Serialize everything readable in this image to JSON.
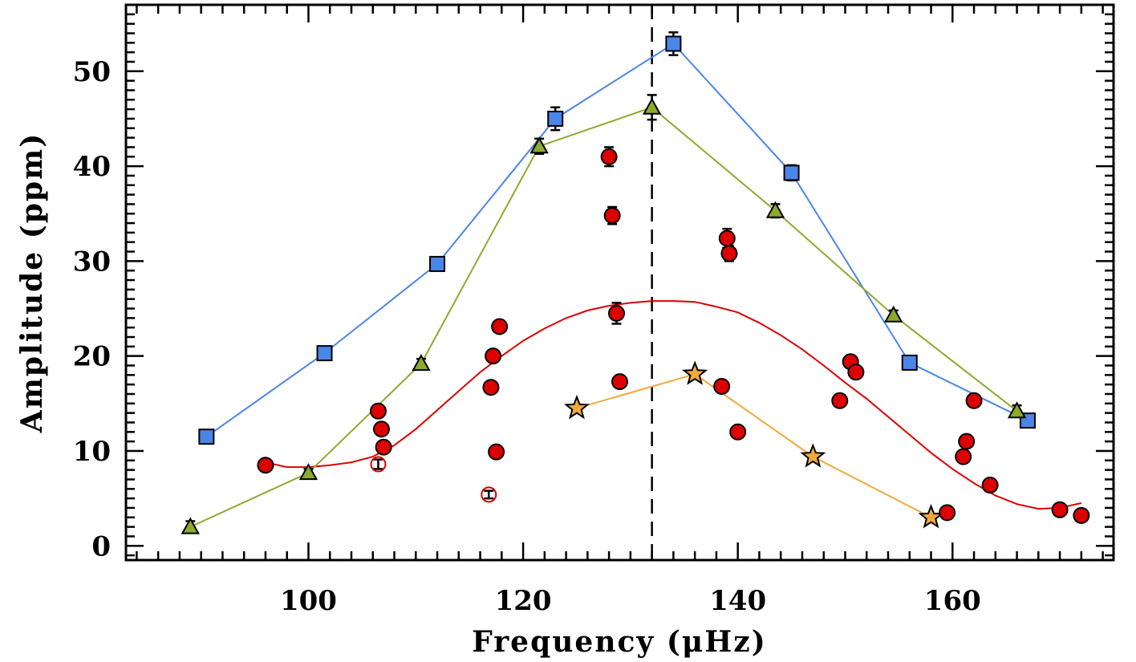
{
  "chart_data": {
    "type": "scatter",
    "xlabel": "Frequency (μHz)",
    "ylabel": "Amplitude (ppm)",
    "xlim": [
      83,
      175
    ],
    "ylim": [
      -1.5,
      57
    ],
    "x_ticks": [
      100,
      120,
      140,
      160
    ],
    "x_tick_labels": [
      "100",
      "120",
      "140",
      "160"
    ],
    "y_ticks": [
      0,
      10,
      20,
      30,
      40,
      50
    ],
    "y_tick_labels": [
      "0",
      "10",
      "20",
      "30",
      "40",
      "50"
    ],
    "vline": {
      "x": 132,
      "style": "dashed",
      "color": "#000000"
    },
    "series": [
      {
        "name": "blue-squares",
        "marker": "square",
        "color": "#4a86e8",
        "line": true,
        "points": [
          {
            "x": 90.5,
            "y": 11.5,
            "err": 0.6
          },
          {
            "x": 101.5,
            "y": 20.3,
            "err": 0.5
          },
          {
            "x": 112,
            "y": 29.7,
            "err": 0.5
          },
          {
            "x": 123,
            "y": 45.0,
            "err": 1.2
          },
          {
            "x": 134,
            "y": 52.9,
            "err": 1.2
          },
          {
            "x": 145,
            "y": 39.3,
            "err": 0.8
          },
          {
            "x": 156,
            "y": 19.3,
            "err": 0.5
          },
          {
            "x": 167,
            "y": 13.2,
            "err": 0.4
          }
        ]
      },
      {
        "name": "green-triangles",
        "marker": "triangle",
        "color": "#8cab2e",
        "line": true,
        "points": [
          {
            "x": 89,
            "y": 2.0,
            "err": 0.6
          },
          {
            "x": 100,
            "y": 7.7,
            "err": 0.4
          },
          {
            "x": 110.5,
            "y": 19.2,
            "err": 0.5
          },
          {
            "x": 121.5,
            "y": 42.1,
            "err": 0.8
          },
          {
            "x": 132,
            "y": 46.2,
            "err": 1.3
          },
          {
            "x": 143.5,
            "y": 35.3,
            "err": 0.7
          },
          {
            "x": 154.5,
            "y": 24.3,
            "err": 0.5
          },
          {
            "x": 166,
            "y": 14.2,
            "err": 0.6
          }
        ]
      },
      {
        "name": "orange-stars",
        "marker": "star",
        "color": "#f2a93b",
        "line": true,
        "points": [
          {
            "x": 125,
            "y": 14.5
          },
          {
            "x": 136,
            "y": 18.1
          },
          {
            "x": 147,
            "y": 9.4
          },
          {
            "x": 158,
            "y": 3.0
          }
        ]
      },
      {
        "name": "red-circles",
        "marker": "circle",
        "color": "#dd0000",
        "line": false,
        "points": [
          {
            "x": 96,
            "y": 8.5
          },
          {
            "x": 106.5,
            "y": 14.2
          },
          {
            "x": 106.8,
            "y": 12.3
          },
          {
            "x": 107,
            "y": 10.4
          },
          {
            "x": 117,
            "y": 16.7
          },
          {
            "x": 117.2,
            "y": 20.0
          },
          {
            "x": 117.5,
            "y": 9.9
          },
          {
            "x": 117.8,
            "y": 23.1
          },
          {
            "x": 128,
            "y": 41.0,
            "err": 1.0
          },
          {
            "x": 128.3,
            "y": 34.8,
            "err": 0.9
          },
          {
            "x": 128.7,
            "y": 24.5,
            "err": 1.1
          },
          {
            "x": 129,
            "y": 17.3
          },
          {
            "x": 138.5,
            "y": 16.8,
            "err": 0.6
          },
          {
            "x": 139,
            "y": 32.4,
            "err": 1.0
          },
          {
            "x": 139.2,
            "y": 30.8,
            "err": 0.8
          },
          {
            "x": 140,
            "y": 12.0
          },
          {
            "x": 149.5,
            "y": 15.3
          },
          {
            "x": 150.5,
            "y": 19.4
          },
          {
            "x": 151,
            "y": 18.3
          },
          {
            "x": 159.5,
            "y": 3.5
          },
          {
            "x": 161,
            "y": 9.4
          },
          {
            "x": 161.3,
            "y": 11.0
          },
          {
            "x": 162,
            "y": 15.3
          },
          {
            "x": 163.5,
            "y": 6.4
          },
          {
            "x": 170,
            "y": 3.8
          },
          {
            "x": 172,
            "y": 3.2
          }
        ]
      },
      {
        "name": "red-open-circles",
        "marker": "open-circle",
        "color": "#dd0000",
        "line": false,
        "points": [
          {
            "x": 106.5,
            "y": 8.6,
            "err": 0.5
          },
          {
            "x": 116.8,
            "y": 5.4,
            "err": 0.4
          }
        ]
      }
    ],
    "fit_curve": {
      "name": "red-fit",
      "color": "#dd0000",
      "points": [
        {
          "x": 96,
          "y": 8.8
        },
        {
          "x": 98,
          "y": 8.3
        },
        {
          "x": 100,
          "y": 8.3
        },
        {
          "x": 102,
          "y": 8.5
        },
        {
          "x": 104,
          "y": 8.8
        },
        {
          "x": 106,
          "y": 9.4
        },
        {
          "x": 108,
          "y": 10.6
        },
        {
          "x": 110,
          "y": 12.3
        },
        {
          "x": 112,
          "y": 14.3
        },
        {
          "x": 114,
          "y": 16.3
        },
        {
          "x": 116,
          "y": 18.3
        },
        {
          "x": 118,
          "y": 20.0
        },
        {
          "x": 120,
          "y": 21.6
        },
        {
          "x": 122,
          "y": 22.9
        },
        {
          "x": 124,
          "y": 24.0
        },
        {
          "x": 126,
          "y": 24.8
        },
        {
          "x": 128,
          "y": 25.3
        },
        {
          "x": 130,
          "y": 25.6
        },
        {
          "x": 132,
          "y": 25.8
        },
        {
          "x": 134,
          "y": 25.8
        },
        {
          "x": 136,
          "y": 25.7
        },
        {
          "x": 138,
          "y": 25.2
        },
        {
          "x": 140,
          "y": 24.6
        },
        {
          "x": 142,
          "y": 23.5
        },
        {
          "x": 144,
          "y": 22.2
        },
        {
          "x": 146,
          "y": 20.7
        },
        {
          "x": 148,
          "y": 19.0
        },
        {
          "x": 150,
          "y": 17.2
        },
        {
          "x": 152,
          "y": 15.5
        },
        {
          "x": 154,
          "y": 13.6
        },
        {
          "x": 156,
          "y": 11.7
        },
        {
          "x": 158,
          "y": 9.8
        },
        {
          "x": 160,
          "y": 8.1
        },
        {
          "x": 162,
          "y": 6.6
        },
        {
          "x": 164,
          "y": 5.3
        },
        {
          "x": 166,
          "y": 4.4
        },
        {
          "x": 168,
          "y": 3.9
        },
        {
          "x": 170,
          "y": 4.0
        },
        {
          "x": 172,
          "y": 4.5
        }
      ]
    }
  }
}
